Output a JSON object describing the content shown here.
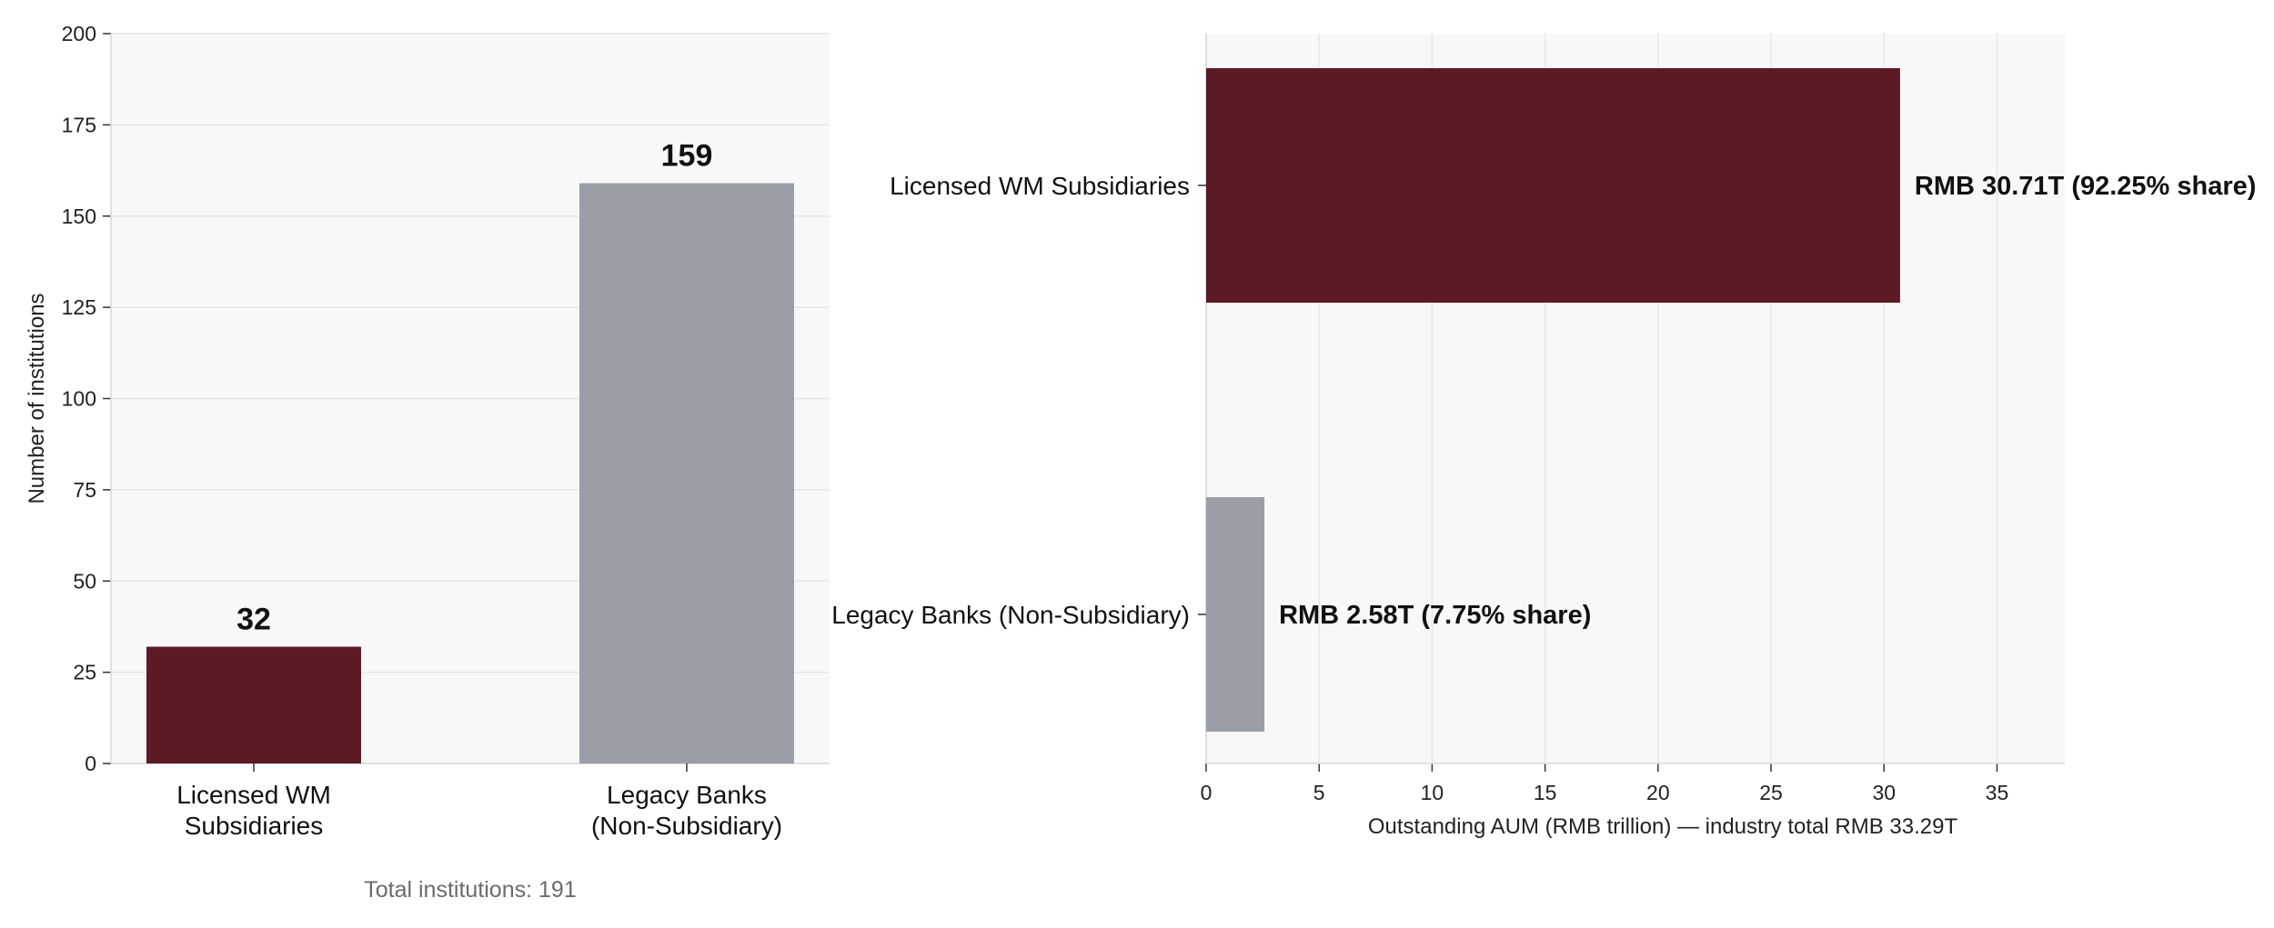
{
  "chart_data": [
    {
      "type": "bar",
      "orientation": "vertical",
      "categories": [
        "Licensed WM Subsidiaries",
        "Legacy Banks (Non-Subsidiary)"
      ],
      "category_label_lines": [
        [
          "Licensed WM",
          "Subsidiaries"
        ],
        [
          "Legacy Banks",
          "(Non-Subsidiary)"
        ]
      ],
      "values": [
        32,
        159
      ],
      "data_labels": [
        "32",
        "159"
      ],
      "colors": [
        "#5c1a24",
        "#9a9ea7"
      ],
      "ylabel": "Number of institutions",
      "ylim": [
        0,
        200
      ],
      "yticks": [
        0,
        25,
        50,
        75,
        100,
        125,
        150,
        175,
        200
      ],
      "grid": "horizontal",
      "footnote": "Total institutions: 191"
    },
    {
      "type": "bar",
      "orientation": "horizontal",
      "categories": [
        "Licensed WM Subsidiaries",
        "Legacy Banks (Non-Subsidiary)"
      ],
      "values": [
        30.71,
        2.58
      ],
      "data_labels": [
        "RMB 30.71T   (92.25% share)",
        "RMB 2.58T   (7.75% share)"
      ],
      "colors": [
        "#5c1a24",
        "#9a9ea7"
      ],
      "xlabel": "Outstanding AUM (RMB trillion) — industry total RMB 33.29T",
      "xlim": [
        0,
        38
      ],
      "xticks": [
        0,
        5,
        10,
        15,
        20,
        25,
        30,
        35
      ],
      "grid": "vertical"
    }
  ]
}
